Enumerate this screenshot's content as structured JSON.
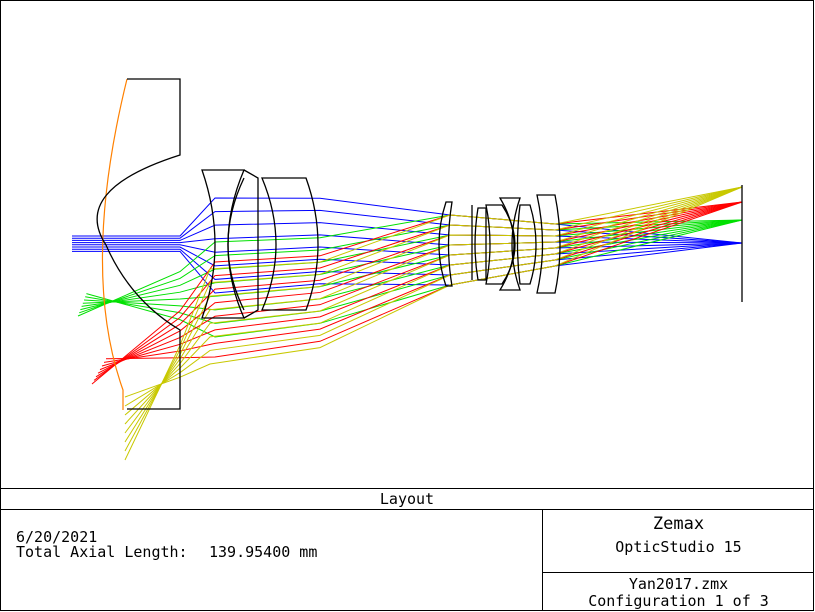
{
  "title_bar": {
    "label": "Layout"
  },
  "info": {
    "date": "6/20/2021",
    "axial_label": "Total Axial Length:",
    "axial_value": "139.95400 mm"
  },
  "brand": {
    "company": "Zemax",
    "product": "OpticStudio 15"
  },
  "file": {
    "name": "Yan2017.zmx",
    "configuration": "Configuration 1 of 3"
  },
  "rays": {
    "field_colors": [
      "#0000ff",
      "#00e000",
      "#ff0000",
      "#c8c800"
    ],
    "aperture_stop_color": "#ff8000"
  }
}
